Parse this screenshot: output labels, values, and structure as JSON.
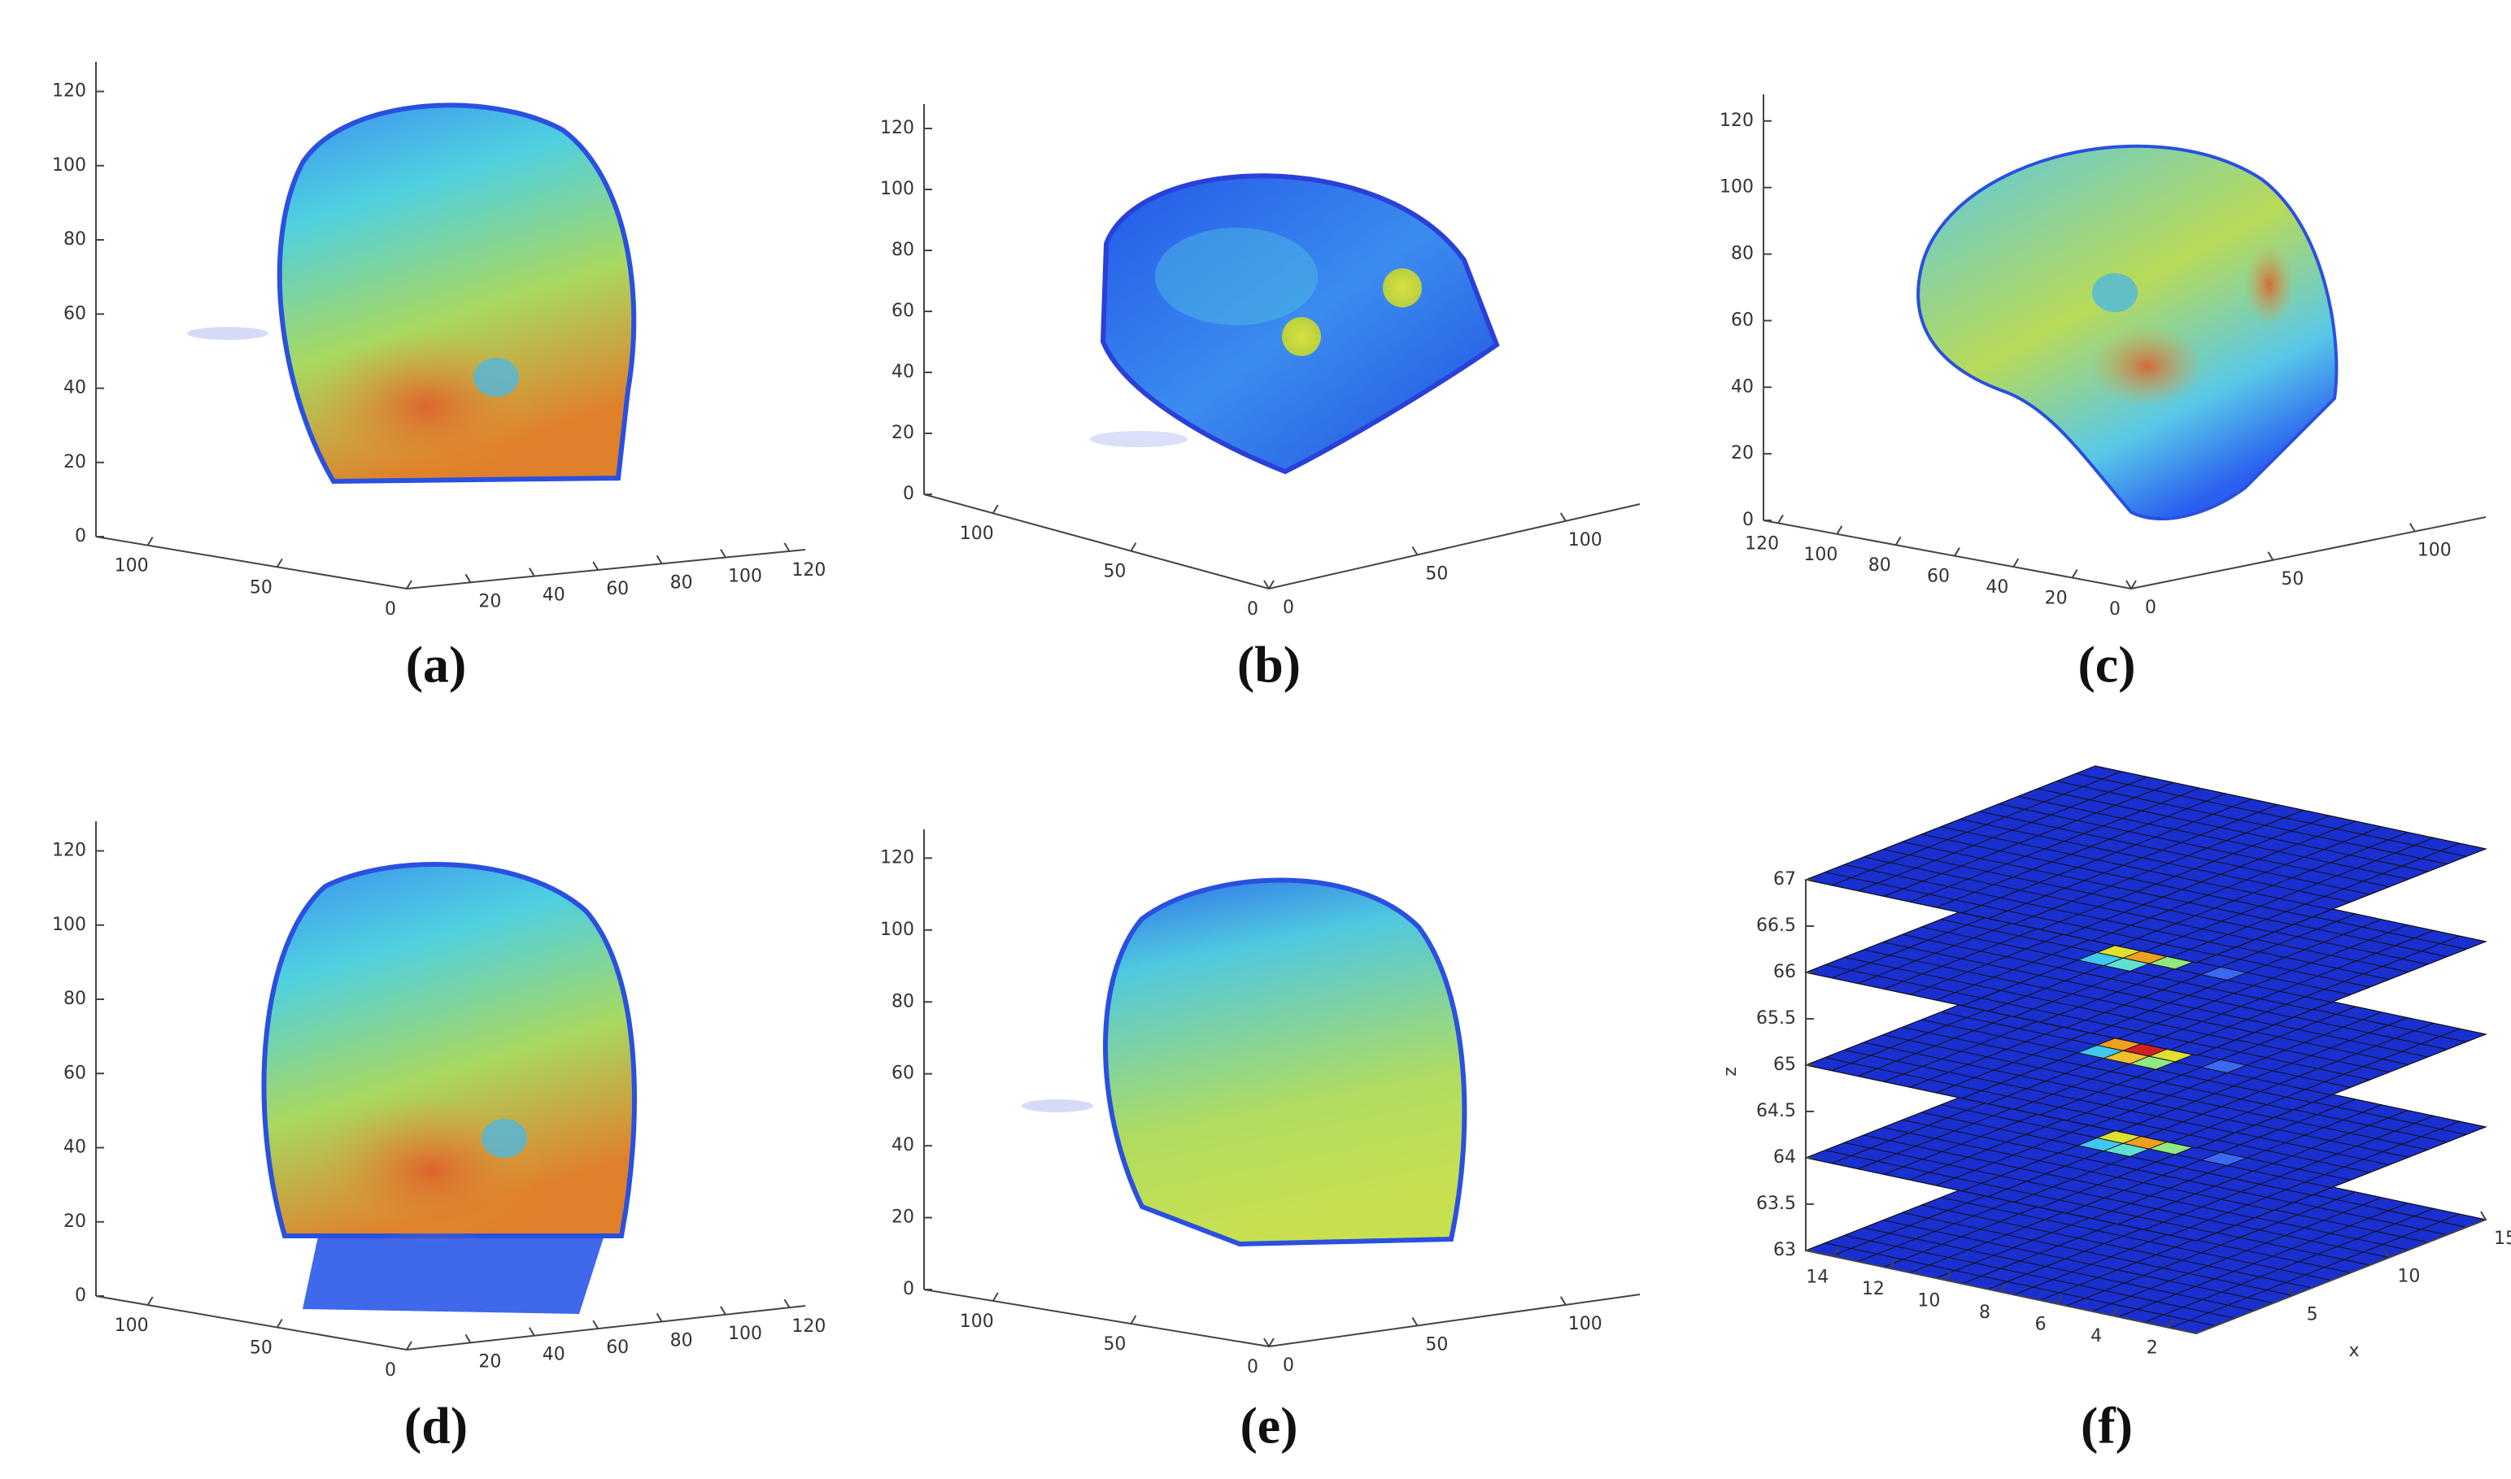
{
  "chart_data": [
    {
      "type": "volume3d",
      "caption": "(a)",
      "zlim": [
        0,
        128
      ],
      "zticks": [
        0,
        20,
        40,
        60,
        80,
        100,
        120
      ],
      "ylim": [
        0,
        120
      ],
      "yticks": [
        0,
        50,
        100
      ],
      "xlim": [
        0,
        125
      ],
      "xticks": [
        20,
        40,
        60,
        80,
        100,
        120
      ]
    },
    {
      "type": "volume3d",
      "caption": "(b)",
      "zlim": [
        0,
        128
      ],
      "zticks": [
        0,
        20,
        40,
        60,
        80,
        100,
        120
      ],
      "ylim": [
        0,
        125
      ],
      "yticks": [
        0,
        50,
        100
      ],
      "xlim": [
        0,
        125
      ],
      "xticks": [
        0,
        50,
        100
      ]
    },
    {
      "type": "volume3d",
      "caption": "(c)",
      "zlim": [
        0,
        128
      ],
      "zticks": [
        0,
        20,
        40,
        60,
        80,
        100,
        120
      ],
      "ylim": [
        0,
        125
      ],
      "yticks": [
        0,
        20,
        40,
        60,
        80,
        100,
        120
      ],
      "xlim": [
        0,
        125
      ],
      "xticks": [
        0,
        50,
        100
      ]
    },
    {
      "type": "volume3d",
      "caption": "(d)",
      "zlim": [
        0,
        128
      ],
      "zticks": [
        0,
        20,
        40,
        60,
        80,
        100,
        120
      ],
      "ylim": [
        0,
        120
      ],
      "yticks": [
        0,
        50,
        100
      ],
      "xlim": [
        0,
        125
      ],
      "xticks": [
        20,
        40,
        60,
        80,
        100,
        120
      ]
    },
    {
      "type": "volume3d",
      "caption": "(e)",
      "zlim": [
        0,
        128
      ],
      "zticks": [
        0,
        20,
        40,
        60,
        80,
        100,
        120
      ],
      "ylim": [
        0,
        125
      ],
      "yticks": [
        0,
        50,
        100
      ],
      "xlim": [
        0,
        125
      ],
      "xticks": [
        0,
        50,
        100
      ]
    },
    {
      "type": "slices3d",
      "caption": "(f)",
      "zlabel": "z",
      "xlabel": "x",
      "zlim": [
        63,
        67
      ],
      "zticks": [
        63,
        63.5,
        64,
        64.5,
        65,
        65.5,
        66,
        66.5,
        67
      ],
      "ylim": [
        1,
        15
      ],
      "yticks": [
        2,
        4,
        6,
        8,
        10,
        12,
        14
      ],
      "xlim": [
        0,
        15
      ],
      "xticks": [
        5,
        10,
        15
      ]
    }
  ]
}
